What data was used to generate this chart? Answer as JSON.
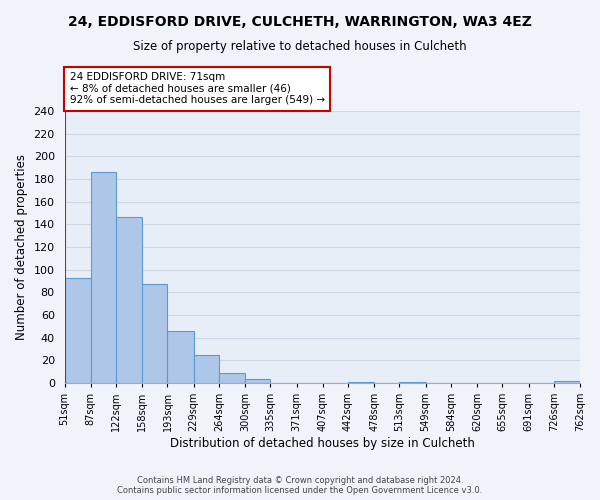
{
  "title": "24, EDDISFORD DRIVE, CULCHETH, WARRINGTON, WA3 4EZ",
  "subtitle": "Size of property relative to detached houses in Culcheth",
  "xlabel": "Distribution of detached houses by size in Culcheth",
  "ylabel": "Number of detached properties",
  "bar_edges": [
    51,
    87,
    122,
    158,
    193,
    229,
    264,
    300,
    335,
    371,
    407,
    442,
    478,
    513,
    549,
    584,
    620,
    655,
    691,
    726,
    762
  ],
  "bar_heights": [
    93,
    186,
    146,
    87,
    46,
    25,
    9,
    4,
    0,
    0,
    0,
    1,
    0,
    1,
    0,
    0,
    0,
    0,
    0,
    2
  ],
  "bar_color": "#aec6e8",
  "bar_edge_color": "#5b9bd5",
  "grid_color": "#d0d8e8",
  "plot_bg_color": "#e8eef8",
  "fig_bg_color": "#f0f4fa",
  "property_size": 71,
  "red_line_x": 51,
  "annotation_line1": "24 EDDISFORD DRIVE: 71sqm",
  "annotation_line2": "← 8% of detached houses are smaller (46)",
  "annotation_line3": "92% of semi-detached houses are larger (549) →",
  "annotation_box_color": "#ffffff",
  "annotation_box_edge_color": "#cc0000",
  "ylim": [
    0,
    240
  ],
  "yticks": [
    0,
    20,
    40,
    60,
    80,
    100,
    120,
    140,
    160,
    180,
    200,
    220,
    240
  ],
  "tick_labels": [
    "51sqm",
    "87sqm",
    "122sqm",
    "158sqm",
    "193sqm",
    "229sqm",
    "264sqm",
    "300sqm",
    "335sqm",
    "371sqm",
    "407sqm",
    "442sqm",
    "478sqm",
    "513sqm",
    "549sqm",
    "584sqm",
    "620sqm",
    "655sqm",
    "691sqm",
    "726sqm",
    "762sqm"
  ],
  "footer1": "Contains HM Land Registry data © Crown copyright and database right 2024.",
  "footer2": "Contains public sector information licensed under the Open Government Licence v3.0."
}
